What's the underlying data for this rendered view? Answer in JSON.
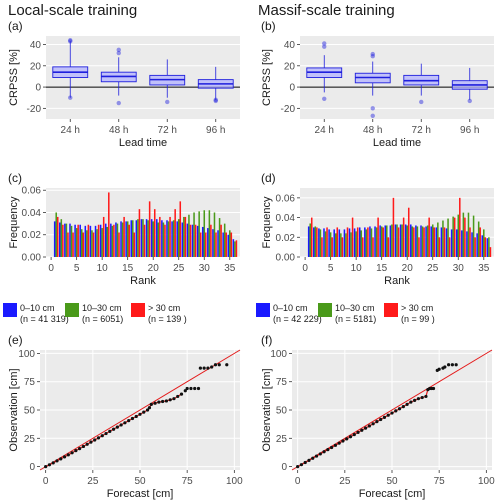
{
  "figure": {
    "titles": [
      "Local-scale training",
      "Massif-scale training"
    ]
  },
  "colors": {
    "panel_bg": "#ebebeb",
    "grid": "#ffffff",
    "box": "#b3b3ff",
    "box_line": "#1f1fdd",
    "cls0": "#1a1aff",
    "cls1": "#4a9a1a",
    "cls2": "#ff1a1a",
    "diag": "#e41a1a",
    "pts": "#111111"
  },
  "legend": {
    "left": [
      {
        "label": "0–10 cm",
        "n": "(n = 41 319)",
        "color": "#1a1aff"
      },
      {
        "label": "10–30 cm",
        "n": "(n = 6051)",
        "color": "#4a9a1a"
      },
      {
        "label": "> 30 cm",
        "n": "(n = 139 )",
        "color": "#ff1a1a"
      }
    ],
    "right": [
      {
        "label": "0–10 cm",
        "n": "(n = 42 229)",
        "color": "#1a1aff"
      },
      {
        "label": "10–30 cm",
        "n": "(n = 5181)",
        "color": "#4a9a1a"
      },
      {
        "label": "> 30 cm",
        "n": "(n = 99 )",
        "color": "#ff1a1a"
      }
    ]
  },
  "chart_data": [
    {
      "panel": "(a)",
      "type": "box",
      "title": "Local-scale training",
      "xlabel": "Lead time",
      "ylabel": "CRPSS [%]",
      "categories": [
        "24 h",
        "48 h",
        "72 h",
        "96 h"
      ],
      "ylim": [
        -30,
        48
      ],
      "yticks": [
        -20,
        0,
        20,
        40
      ],
      "hline": 0,
      "boxes": [
        {
          "min": -10,
          "q1": 9,
          "median": 14,
          "q3": 19,
          "max": 43,
          "outliers": [
            44,
            43,
            -10
          ]
        },
        {
          "min": -8,
          "q1": 5,
          "median": 10,
          "q3": 14,
          "max": 28,
          "outliers": [
            35,
            32,
            -15
          ]
        },
        {
          "min": -10,
          "q1": 2,
          "median": 7,
          "q3": 11,
          "max": 26,
          "outliers": [
            -14
          ]
        },
        {
          "min": -12,
          "q1": -1,
          "median": 3,
          "q3": 7,
          "max": 19,
          "outliers": [
            -12,
            -13
          ]
        }
      ]
    },
    {
      "panel": "(b)",
      "type": "box",
      "title": "Massif-scale training",
      "xlabel": "Lead time",
      "ylabel": "CRPSS [%]",
      "categories": [
        "24 h",
        "48 h",
        "72 h",
        "96 h"
      ],
      "ylim": [
        -30,
        48
      ],
      "yticks": [
        -20,
        0,
        20,
        40
      ],
      "hline": 0,
      "boxes": [
        {
          "min": -5,
          "q1": 9,
          "median": 14,
          "q3": 18,
          "max": 30,
          "outliers": [
            41,
            38,
            -11
          ]
        },
        {
          "min": -8,
          "q1": 4,
          "median": 9,
          "q3": 13,
          "max": 24,
          "outliers": [
            31,
            29,
            -20,
            -27
          ]
        },
        {
          "min": -8,
          "q1": 2,
          "median": 6,
          "q3": 11,
          "max": 22,
          "outliers": [
            -14
          ]
        },
        {
          "min": -12,
          "q1": -2,
          "median": 2,
          "q3": 6,
          "max": 18,
          "outliers": [
            -13
          ]
        }
      ]
    },
    {
      "panel": "(c)",
      "type": "bar",
      "xlabel": "Rank",
      "ylabel": "Frequency",
      "xticks": [
        0,
        5,
        10,
        15,
        20,
        25,
        30,
        35
      ],
      "ylim": [
        0,
        0.062
      ],
      "yticks": [
        0,
        0.02,
        0.04,
        0.06
      ],
      "yticklabels": [
        "0.00",
        "0.02",
        "0.04",
        "0.06"
      ],
      "x": [
        1,
        2,
        3,
        4,
        5,
        6,
        7,
        8,
        9,
        10,
        11,
        12,
        13,
        14,
        15,
        16,
        17,
        18,
        19,
        20,
        21,
        22,
        23,
        24,
        25,
        26,
        27,
        28,
        29,
        30,
        31,
        32,
        33,
        34,
        35,
        36
      ],
      "series": [
        {
          "name": "0–10 cm",
          "values": [
            0.032,
            0.031,
            0.03,
            0.03,
            0.029,
            0.029,
            0.028,
            0.028,
            0.028,
            0.029,
            0.03,
            0.03,
            0.031,
            0.032,
            0.032,
            0.033,
            0.033,
            0.034,
            0.034,
            0.034,
            0.034,
            0.033,
            0.033,
            0.032,
            0.032,
            0.031,
            0.03,
            0.029,
            0.028,
            0.027,
            0.026,
            0.025,
            0.024,
            0.022,
            0.02,
            0.016
          ]
        },
        {
          "name": "10–30 cm",
          "values": [
            0.04,
            0.034,
            0.03,
            0.028,
            0.026,
            0.025,
            0.024,
            0.024,
            0.025,
            0.026,
            0.027,
            0.028,
            0.03,
            0.031,
            0.032,
            0.033,
            0.034,
            0.034,
            0.033,
            0.032,
            0.031,
            0.031,
            0.032,
            0.033,
            0.034,
            0.036,
            0.038,
            0.04,
            0.041,
            0.042,
            0.042,
            0.04,
            0.035,
            0.03,
            0.024,
            0.014
          ]
        },
        {
          "name": "> 30 cm",
          "values": [
            0.036,
            0.029,
            0.022,
            0.022,
            0.029,
            0.022,
            0.029,
            0.022,
            0.029,
            0.036,
            0.058,
            0.029,
            0.022,
            0.036,
            0.029,
            0.022,
            0.043,
            0.029,
            0.05,
            0.043,
            0.036,
            0.029,
            0.036,
            0.043,
            0.05,
            0.036,
            0.029,
            0.029,
            0.022,
            0.022,
            0.029,
            0.022,
            0.029,
            0.022,
            0.022,
            0.015
          ]
        }
      ]
    },
    {
      "panel": "(d)",
      "type": "bar",
      "xlabel": "Rank",
      "ylabel": "Frequency",
      "xticks": [
        0,
        5,
        10,
        15,
        20,
        25,
        30,
        35
      ],
      "ylim": [
        0,
        0.07
      ],
      "yticks": [
        0,
        0.02,
        0.04,
        0.06
      ],
      "yticklabels": [
        "0.00",
        "0.02",
        "0.04",
        "0.06"
      ],
      "x": [
        1,
        2,
        3,
        4,
        5,
        6,
        7,
        8,
        9,
        10,
        11,
        12,
        13,
        14,
        15,
        16,
        17,
        18,
        19,
        20,
        21,
        22,
        23,
        24,
        25,
        26,
        27,
        28,
        29,
        30,
        31,
        32,
        33,
        34,
        35,
        36
      ],
      "series": [
        {
          "name": "0–10 cm",
          "values": [
            0.031,
            0.03,
            0.029,
            0.029,
            0.028,
            0.028,
            0.028,
            0.028,
            0.029,
            0.029,
            0.03,
            0.03,
            0.031,
            0.031,
            0.032,
            0.032,
            0.032,
            0.033,
            0.033,
            0.033,
            0.033,
            0.032,
            0.032,
            0.031,
            0.031,
            0.03,
            0.03,
            0.029,
            0.028,
            0.028,
            0.027,
            0.026,
            0.025,
            0.024,
            0.022,
            0.019
          ]
        },
        {
          "name": "10–30 cm",
          "values": [
            0.034,
            0.031,
            0.028,
            0.026,
            0.025,
            0.024,
            0.024,
            0.024,
            0.025,
            0.026,
            0.027,
            0.028,
            0.029,
            0.03,
            0.031,
            0.032,
            0.033,
            0.033,
            0.033,
            0.032,
            0.031,
            0.031,
            0.031,
            0.032,
            0.033,
            0.035,
            0.037,
            0.039,
            0.041,
            0.043,
            0.045,
            0.045,
            0.042,
            0.036,
            0.028,
            0.02
          ]
        },
        {
          "name": "> 30 cm",
          "values": [
            0.04,
            0.03,
            0.02,
            0.03,
            0.02,
            0.03,
            0.02,
            0.03,
            0.04,
            0.03,
            0.02,
            0.03,
            0.02,
            0.04,
            0.03,
            0.02,
            0.06,
            0.03,
            0.04,
            0.05,
            0.03,
            0.02,
            0.03,
            0.04,
            0.03,
            0.02,
            0.03,
            0.02,
            0.04,
            0.06,
            0.04,
            0.03,
            0.02,
            0.03,
            0.02,
            0.01
          ]
        }
      ]
    },
    {
      "panel": "(e)",
      "type": "scatter",
      "xlabel": "Forecast [cm]",
      "ylabel": "Observation [cm]",
      "xlim": [
        -3,
        103
      ],
      "ylim": [
        -3,
        103
      ],
      "xticks": [
        0,
        25,
        50,
        75,
        100
      ],
      "yticks": [
        0,
        25,
        50,
        75,
        100
      ],
      "diagonal": true,
      "points": [
        [
          0,
          0
        ],
        [
          2,
          1.6
        ],
        [
          4,
          3.3
        ],
        [
          6,
          5.1
        ],
        [
          8,
          6.8
        ],
        [
          10,
          8.6
        ],
        [
          12,
          10.4
        ],
        [
          14,
          12.2
        ],
        [
          16,
          14.1
        ],
        [
          18,
          15.9
        ],
        [
          20,
          17.8
        ],
        [
          22,
          19.7
        ],
        [
          24,
          21.6
        ],
        [
          26,
          23.5
        ],
        [
          28,
          25.4
        ],
        [
          30,
          27.3
        ],
        [
          32,
          29.2
        ],
        [
          34,
          31.1
        ],
        [
          36,
          33.0
        ],
        [
          38,
          34.9
        ],
        [
          40,
          36.8
        ],
        [
          42,
          38.7
        ],
        [
          44,
          40.6
        ],
        [
          46,
          42.5
        ],
        [
          48,
          44.3
        ],
        [
          50,
          46.2
        ],
        [
          52,
          48.1
        ],
        [
          54,
          50.0
        ],
        [
          55,
          52.0
        ],
        [
          56,
          55.0
        ],
        [
          58,
          56.0
        ],
        [
          60,
          57.0
        ],
        [
          62,
          57.5
        ],
        [
          64,
          58.0
        ],
        [
          66,
          59.0
        ],
        [
          68,
          60.0
        ],
        [
          70,
          62.0
        ],
        [
          72,
          64.0
        ],
        [
          74,
          67.0
        ],
        [
          75,
          69.0
        ],
        [
          77,
          69.0
        ],
        [
          79,
          69.0
        ],
        [
          81,
          69.0
        ],
        [
          82,
          87.0
        ],
        [
          84,
          87.0
        ],
        [
          86,
          87.0
        ],
        [
          88,
          88.0
        ],
        [
          90,
          90.0
        ],
        [
          92,
          90.0
        ],
        [
          96,
          90.0
        ]
      ]
    },
    {
      "panel": "(f)",
      "type": "scatter",
      "xlabel": "Forecast [cm]",
      "ylabel": "Observation [cm]",
      "xlim": [
        -3,
        103
      ],
      "ylim": [
        -3,
        103
      ],
      "xticks": [
        0,
        25,
        50,
        75,
        100
      ],
      "yticks": [
        0,
        25,
        50,
        75,
        100
      ],
      "diagonal": true,
      "points": [
        [
          0,
          0
        ],
        [
          2,
          1.7
        ],
        [
          4,
          3.6
        ],
        [
          6,
          5.5
        ],
        [
          8,
          7.4
        ],
        [
          10,
          9.3
        ],
        [
          12,
          11.2
        ],
        [
          14,
          13.1
        ],
        [
          16,
          15.0
        ],
        [
          18,
          16.9
        ],
        [
          20,
          18.8
        ],
        [
          22,
          20.7
        ],
        [
          24,
          22.6
        ],
        [
          26,
          24.5
        ],
        [
          28,
          26.4
        ],
        [
          30,
          28.3
        ],
        [
          32,
          30.2
        ],
        [
          34,
          32.1
        ],
        [
          36,
          34.0
        ],
        [
          38,
          35.9
        ],
        [
          40,
          37.8
        ],
        [
          42,
          39.7
        ],
        [
          44,
          41.6
        ],
        [
          46,
          43.5
        ],
        [
          48,
          45.4
        ],
        [
          50,
          47.3
        ],
        [
          52,
          49.2
        ],
        [
          54,
          51.1
        ],
        [
          56,
          53.0
        ],
        [
          58,
          55.0
        ],
        [
          60,
          57.0
        ],
        [
          62,
          58.5
        ],
        [
          64,
          60.0
        ],
        [
          66,
          61.0
        ],
        [
          68,
          62.0
        ],
        [
          69,
          68.0
        ],
        [
          70,
          69.0
        ],
        [
          71,
          69.0
        ],
        [
          72,
          69.0
        ],
        [
          74,
          85.0
        ],
        [
          75,
          86.0
        ],
        [
          77,
          87.0
        ],
        [
          78,
          88.0
        ],
        [
          80,
          90.0
        ],
        [
          82,
          90.0
        ],
        [
          84,
          90.0
        ]
      ]
    }
  ]
}
